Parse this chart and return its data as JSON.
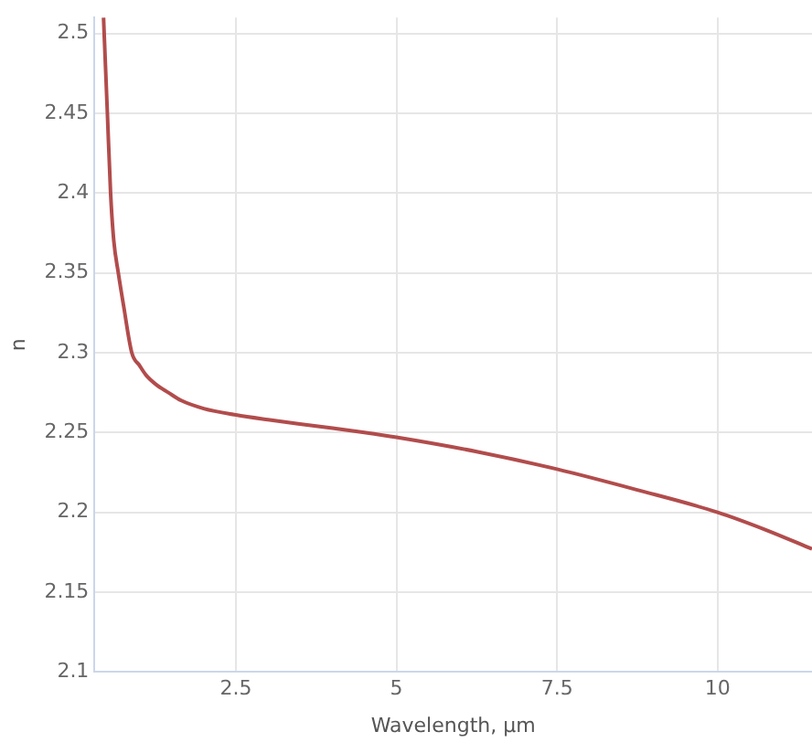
{
  "chart_data": {
    "type": "line",
    "xlabel": "Wavelength, μm",
    "ylabel": "n",
    "x": [
      0.44,
      0.47,
      0.5,
      0.55,
      0.6,
      0.67,
      0.75,
      0.88,
      1.0,
      1.1,
      1.26,
      1.45,
      1.65,
      2.0,
      2.5,
      3.0,
      3.75,
      4.5,
      5.0,
      6.25,
      7.5,
      8.75,
      10.0,
      10.75,
      11.47
    ],
    "series": [
      {
        "color": "#b24c4c",
        "values": [
          2.51,
          2.48,
          2.45,
          2.4,
          2.37,
          2.35,
          2.33,
          2.3,
          2.292,
          2.286,
          2.28,
          2.275,
          2.27,
          2.265,
          2.261,
          2.258,
          2.254,
          2.25,
          2.247,
          2.238,
          2.227,
          2.214,
          2.2,
          2.189,
          2.177
        ]
      }
    ],
    "xlim": [
      0.3,
      11.47
    ],
    "ylim": [
      2.1,
      2.51
    ],
    "xticks": [
      2.5,
      5,
      7.5,
      10
    ],
    "yticks": [
      2.1,
      2.15,
      2.2,
      2.25,
      2.3,
      2.35,
      2.4,
      2.45,
      2.5
    ],
    "grid": true,
    "legend": false,
    "marker": "none",
    "line_style": "solid"
  }
}
